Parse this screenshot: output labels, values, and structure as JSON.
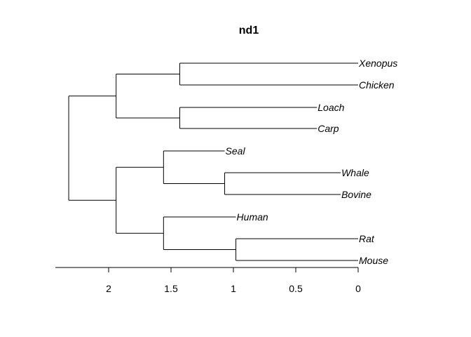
{
  "chart_data": {
    "type": "dendrogram",
    "title": "nd1",
    "xlabel": "",
    "ylabel": "",
    "x_axis_reversed": true,
    "xlim": [
      2.4,
      0
    ],
    "ticks": [
      2,
      1.5,
      1,
      0.5,
      0
    ],
    "tick_labels": [
      "2",
      "1.5",
      "1",
      "0.5",
      "0"
    ],
    "leaves": [
      {
        "name": "Xenopus",
        "height": 0
      },
      {
        "name": "Chicken",
        "height": 0
      },
      {
        "name": "Loach",
        "height": 0.33
      },
      {
        "name": "Carp",
        "height": 0.33
      },
      {
        "name": "Seal",
        "height": 1.07
      },
      {
        "name": "Whale",
        "height": 0.14
      },
      {
        "name": "Bovine",
        "height": 0.14
      },
      {
        "name": "Human",
        "height": 0.98
      },
      {
        "name": "Rat",
        "height": 0
      },
      {
        "name": "Mouse",
        "height": 0
      }
    ],
    "merges": [
      {
        "id": "n1",
        "children": [
          "Xenopus",
          "Chicken"
        ],
        "height": 1.43
      },
      {
        "id": "n2",
        "children": [
          "Loach",
          "Carp"
        ],
        "height": 1.43
      },
      {
        "id": "n3",
        "children": [
          "n1",
          "n2"
        ],
        "height": 1.94
      },
      {
        "id": "n4",
        "children": [
          "Whale",
          "Bovine"
        ],
        "height": 1.07
      },
      {
        "id": "n5",
        "children": [
          "Seal",
          "n4"
        ],
        "height": 1.56
      },
      {
        "id": "n6",
        "children": [
          "Rat",
          "Mouse"
        ],
        "height": 0.98
      },
      {
        "id": "n7",
        "children": [
          "Human",
          "n6"
        ],
        "height": 1.56
      },
      {
        "id": "n8",
        "children": [
          "n5",
          "n7"
        ],
        "height": 1.94
      },
      {
        "id": "n9",
        "children": [
          "n3",
          "n8"
        ],
        "height": 2.32
      }
    ]
  }
}
